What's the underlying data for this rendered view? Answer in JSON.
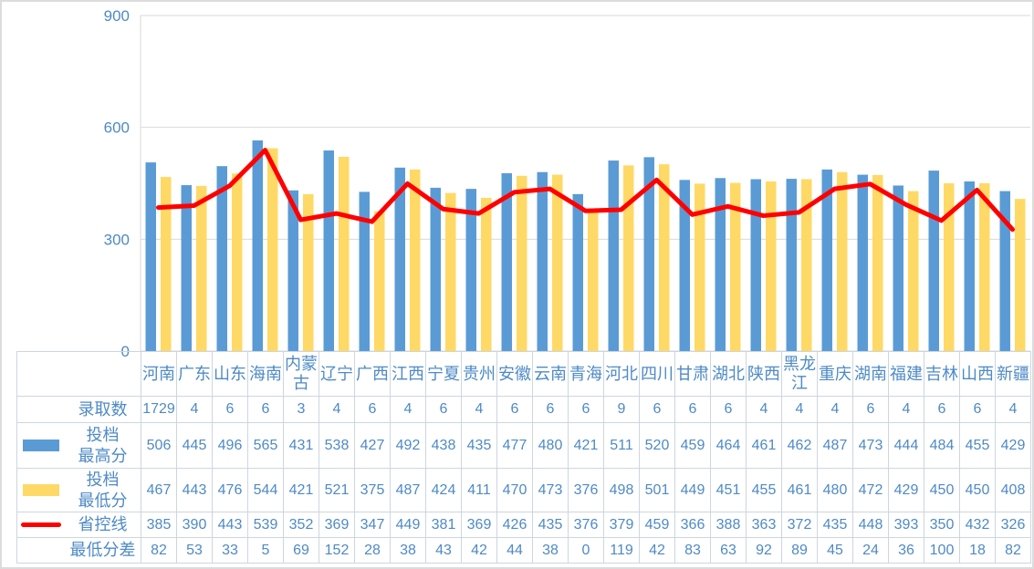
{
  "window": {
    "title": "投档分数统计图表"
  },
  "colors": {
    "bar_high": "#5B9BD5",
    "bar_low": "#FFD966",
    "control_line": "#FF0000",
    "text_blue": "#4e8ac6",
    "grid": "#d9d9d9",
    "axis": "#d9d9d9",
    "table_border": "#ccd6e1",
    "frame_border": "#dcdcdc"
  },
  "chart_data": {
    "type": "bar",
    "subtype": "grouped bars + line overlay + data table",
    "title": "",
    "xlabel": "",
    "ylabel": "",
    "ylim": [
      0,
      900
    ],
    "yticks": [
      0,
      300,
      600,
      900
    ],
    "grid": true,
    "legend_position": "table-left",
    "categories": [
      "河南",
      "广东",
      "山东",
      "海南",
      "内蒙古",
      "辽宁",
      "广西",
      "江西",
      "宁夏",
      "贵州",
      "安徽",
      "云南",
      "青海",
      "河北",
      "四川",
      "甘肃",
      "湖北",
      "陕西",
      "黑龙江",
      "重庆",
      "湖南",
      "福建",
      "吉林",
      "山西",
      "新疆"
    ],
    "series": [
      {
        "id": "admission-count",
        "name": "录取数",
        "label": "录取数",
        "render": "table-only",
        "legend": "none",
        "values": [
          1729,
          4,
          6,
          6,
          3,
          4,
          6,
          4,
          6,
          4,
          6,
          6,
          6,
          9,
          6,
          6,
          6,
          4,
          4,
          4,
          6,
          4,
          6,
          6,
          4
        ]
      },
      {
        "id": "max-score",
        "name": "投档最高分",
        "label": "投档\n最高分",
        "render": "bar",
        "legend": "bar",
        "color": "#5B9BD5",
        "values": [
          506,
          445,
          496,
          565,
          431,
          538,
          427,
          492,
          438,
          435,
          477,
          480,
          421,
          511,
          520,
          459,
          464,
          461,
          462,
          487,
          473,
          444,
          484,
          455,
          429
        ]
      },
      {
        "id": "min-score",
        "name": "投档最低分",
        "label": "投档\n最低分",
        "render": "bar",
        "legend": "bar",
        "color": "#FFD966",
        "values": [
          467,
          443,
          476,
          544,
          421,
          521,
          375,
          487,
          424,
          411,
          470,
          473,
          376,
          498,
          501,
          449,
          451,
          455,
          461,
          480,
          472,
          429,
          450,
          450,
          408
        ]
      },
      {
        "id": "control-line",
        "name": "省控线",
        "label": "省控线",
        "render": "line",
        "legend": "line",
        "color": "#FF0000",
        "values": [
          385,
          390,
          443,
          539,
          352,
          369,
          347,
          449,
          381,
          369,
          426,
          435,
          376,
          379,
          459,
          366,
          388,
          363,
          372,
          435,
          448,
          393,
          350,
          432,
          326
        ]
      },
      {
        "id": "min-score-gap",
        "name": "最低分差",
        "label": "最低分差",
        "render": "table-only",
        "legend": "none",
        "values": [
          82,
          53,
          33,
          5,
          69,
          152,
          28,
          38,
          43,
          42,
          44,
          38,
          0,
          119,
          42,
          83,
          63,
          92,
          89,
          45,
          24,
          36,
          100,
          18,
          82
        ]
      }
    ]
  }
}
